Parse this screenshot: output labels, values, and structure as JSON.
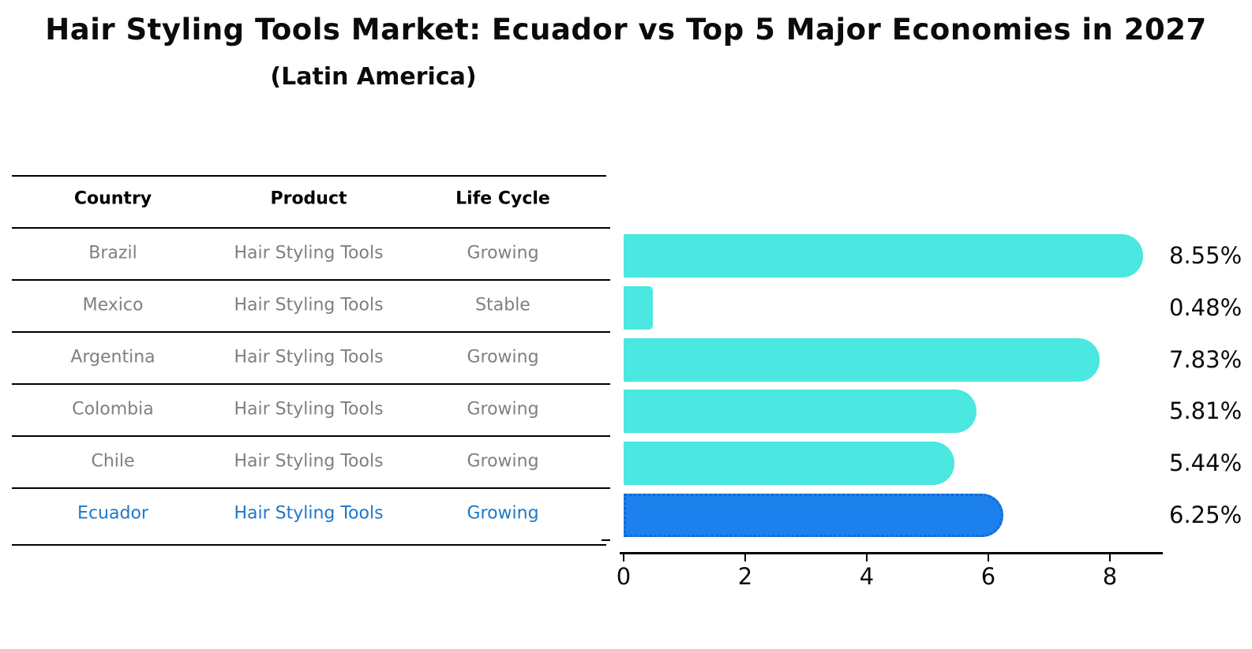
{
  "header": {
    "title": "Hair Styling Tools Market: Ecuador vs Top 5 Major Economies in 2027",
    "subtitle": "(Latin America)"
  },
  "table": {
    "headers": [
      "Country",
      "Product",
      "Life Cycle"
    ],
    "rows": [
      {
        "country": "Brazil",
        "product": "Hair Styling Tools",
        "life_cycle": "Growing",
        "highlight": false
      },
      {
        "country": "Mexico",
        "product": "Hair Styling Tools",
        "life_cycle": "Stable",
        "highlight": false
      },
      {
        "country": "Argentina",
        "product": "Hair Styling Tools",
        "life_cycle": "Growing",
        "highlight": false
      },
      {
        "country": "Colombia",
        "product": "Hair Styling Tools",
        "life_cycle": "Growing",
        "highlight": false
      },
      {
        "country": "Chile",
        "product": "Hair Styling Tools",
        "life_cycle": "Growing",
        "highlight": false
      },
      {
        "country": "Ecuador",
        "product": "Hair Styling Tools",
        "life_cycle": "Growing",
        "highlight": true
      }
    ]
  },
  "chart_data": {
    "type": "bar",
    "orientation": "horizontal",
    "title": "Hair Styling Tools Market: Ecuador vs Top 5 Major Economies in 2027",
    "subtitle": "(Latin America)",
    "categories": [
      "Brazil",
      "Mexico",
      "Argentina",
      "Colombia",
      "Chile",
      "Ecuador"
    ],
    "values": [
      8.55,
      0.48,
      7.83,
      5.81,
      5.44,
      6.25
    ],
    "value_labels": [
      "8.55%",
      "0.48%",
      "7.83%",
      "5.81%",
      "5.44%",
      "6.25%"
    ],
    "xlabel": "",
    "ylabel": "",
    "xlim": [
      0,
      8.9
    ],
    "xticks": [
      0,
      2,
      4,
      6,
      8
    ],
    "grid": false,
    "legend": null,
    "highlight_category": "Ecuador",
    "colors": {
      "bar": "#4be7e1",
      "highlight_bar": "#1c81ec",
      "highlight_border": "#1467d2",
      "highlight_text": "#1d78c8",
      "row_text": "#7f7f7f",
      "axis": "#000000"
    }
  }
}
